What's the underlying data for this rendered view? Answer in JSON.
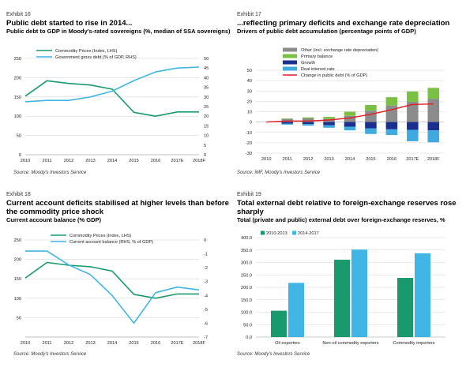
{
  "colors": {
    "green": "#1a9a6c",
    "blue": "#41b6e6",
    "grey": "#8c8c8c",
    "lightgreen": "#7ac143",
    "navy": "#1b2f8f",
    "lightblue": "#3fa9e0",
    "red": "#e31b23"
  },
  "chart_data": [
    {
      "type": "line",
      "exhibit": "Exhibit 16",
      "title": "Public debt started to rise in 2014...",
      "subtitle": "Public debt to GDP in Moody's-rated sovereigns (%, median of SSA sovereigns)",
      "source": "Source: Moody's Investors Service",
      "x": [
        "2010",
        "2011",
        "2012",
        "2013",
        "2014",
        "2015",
        "2016",
        "2017E",
        "2018F"
      ],
      "ylim": [
        0,
        250
      ],
      "yticks": [
        "0",
        "50",
        "100",
        "150",
        "200",
        "250"
      ],
      "y2lim": [
        0,
        50
      ],
      "y2ticks": [
        "0",
        "5",
        "10",
        "15",
        "20",
        "25",
        "30",
        "35",
        "40",
        "45",
        "50"
      ],
      "legend": "top-left",
      "grid": true,
      "series": [
        {
          "name": "Commodity Prices (Index, LHS)",
          "axis": "left",
          "color": "#1a9a6c",
          "values": [
            152,
            192,
            185,
            181,
            170,
            110,
            100,
            111,
            111
          ]
        },
        {
          "name": "Government gross debt (% of GDP, RHS)",
          "axis": "right",
          "color": "#41b6e6",
          "values": [
            27.5,
            28.2,
            28.2,
            30,
            33,
            38.5,
            43,
            45,
            45.5
          ]
        }
      ]
    },
    {
      "type": "bar",
      "exhibit": "Exhibit 17",
      "title": "...reflecting primary deficits and exchange rate depreciation",
      "subtitle": "Drivers of public debt accumulation (percentage points of GDP)",
      "source": "Source: IMF, Moody's Investors Service",
      "categories": [
        "2010",
        "2011",
        "2012",
        "2013",
        "2014",
        "2015",
        "2016",
        "2017E",
        "2018F"
      ],
      "ylim": [
        -30,
        50
      ],
      "yticks": [
        "-30",
        "-20",
        "-10",
        "0",
        "10",
        "20",
        "30",
        "40",
        "50"
      ],
      "legend": "top-left",
      "grid": true,
      "stacked": true,
      "series": [
        {
          "name": "Other (incl. exchange rate depreciation)",
          "color": "#8c8c8c",
          "values": [
            0,
            3,
            3.5,
            3,
            6,
            11,
            16,
            19.5,
            22.5
          ]
        },
        {
          "name": "Primary balance",
          "color": "#7ac143",
          "values": [
            0,
            0.5,
            1,
            2,
            4,
            5.5,
            8,
            10,
            10.5
          ]
        },
        {
          "name": "Growth",
          "color": "#1b2f8f",
          "values": [
            0,
            -1.5,
            -2,
            -3,
            -4.5,
            -6,
            -7,
            -7.5,
            -8
          ]
        },
        {
          "name": "Real interest rate",
          "color": "#3fa9e0",
          "values": [
            0,
            -1,
            -1.5,
            -2.5,
            -3.5,
            -5.5,
            -5.5,
            -11,
            -11.5
          ]
        }
      ],
      "line": {
        "name": "Change in public debt (% of GDP)",
        "color": "#e31b23",
        "values": [
          0,
          1,
          1,
          2,
          4,
          7.5,
          12,
          17,
          17.5
        ]
      }
    },
    {
      "type": "line",
      "exhibit": "Exhibit 18",
      "title": "Current account deficits stabilised at higher levels than before the commodity price shock",
      "subtitle": "Current account balance (% GDP)",
      "source": "Source: Moody's Investors Service",
      "x": [
        "2010",
        "2011",
        "2012",
        "2013",
        "2014",
        "2015",
        "2016",
        "2017E",
        "2018F"
      ],
      "ylim": [
        0,
        250
      ],
      "yticks": [
        "",
        "50",
        "100",
        "150",
        "200",
        "250"
      ],
      "y2lim": [
        -7,
        0
      ],
      "y2ticks": [
        "-7",
        "-6",
        "-5",
        "-4",
        "-3",
        "-2",
        "-1",
        "0"
      ],
      "legend": "top-left",
      "grid": true,
      "series": [
        {
          "name": "Commodity Prices (Index, LHS)",
          "axis": "left",
          "color": "#1a9a6c",
          "values": [
            152,
            192,
            185,
            181,
            170,
            110,
            100,
            111,
            111
          ]
        },
        {
          "name": "Current account balance (RHS, % of GDP)",
          "axis": "right",
          "color": "#41b6e6",
          "values": [
            -0.8,
            -0.8,
            -1.8,
            -2.5,
            -4.0,
            -6.0,
            -3.8,
            -3.4,
            -3.6
          ]
        }
      ]
    },
    {
      "type": "bar",
      "exhibit": "Exhibit 19",
      "title": "Total external debt relative to foreign-exchange reserves rose sharply",
      "subtitle": "Total (private and public) external debt over foreign-exchange reserves, %",
      "source": "Source: Moody's Investors Service",
      "categories": [
        "Oil exporters",
        "Non-oil commodity exporters",
        "Commodity importers"
      ],
      "ylim": [
        0,
        400
      ],
      "yticks": [
        "0.0",
        "50.0",
        "100.0",
        "150.0",
        "200.0",
        "250.0",
        "300.0",
        "350.0",
        "400.0"
      ],
      "legend": "top-left",
      "grid": true,
      "series": [
        {
          "name": "2010-2013",
          "color": "#1a9a6c",
          "values": [
            106,
            311,
            238
          ]
        },
        {
          "name": "2014-2017",
          "color": "#41b6e6",
          "values": [
            218,
            352,
            337
          ]
        }
      ]
    }
  ]
}
